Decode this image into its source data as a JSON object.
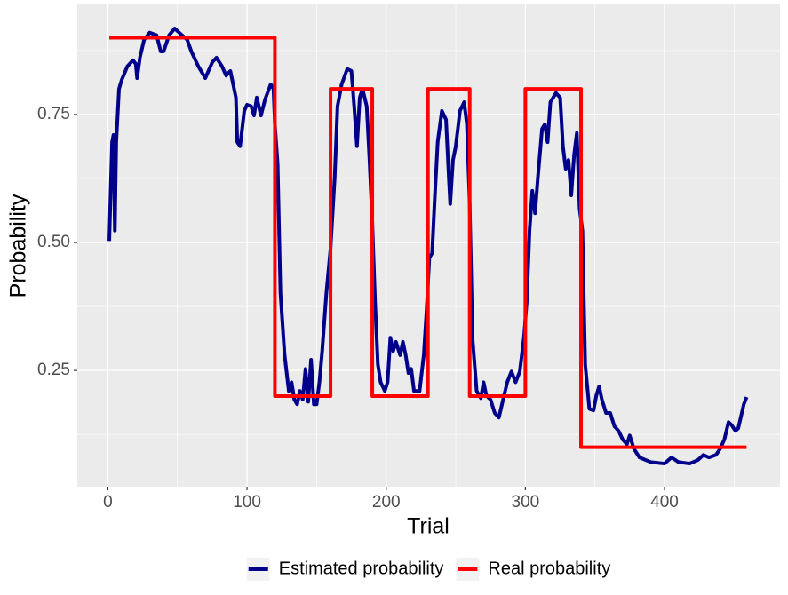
{
  "chart_data": {
    "type": "line",
    "x_label": "Trial",
    "y_label": "Probability",
    "xlim": [
      -22,
      483
    ],
    "ylim": [
      0.023,
      0.965
    ],
    "xticks": [
      0,
      100,
      200,
      300,
      400
    ],
    "yticks": [
      0.25,
      {
        "value": 0.5,
        "label": "0.50"
      },
      0.75
    ],
    "grid": true,
    "legend": "bottom",
    "series": [
      {
        "name": "Estimated probability",
        "color": "#00008b",
        "x": [
          1,
          2,
          3,
          4,
          5,
          6,
          8,
          10,
          14,
          18,
          20,
          21,
          23,
          26,
          30,
          35,
          38,
          40,
          44,
          48,
          52,
          57,
          60,
          65,
          70,
          75,
          78,
          82,
          85,
          88,
          92,
          93,
          95,
          98,
          100,
          103,
          105,
          107,
          110,
          113,
          117,
          119,
          120,
          122,
          124,
          127,
          130,
          132,
          134,
          136,
          138,
          140,
          142,
          144,
          146,
          148,
          150,
          152,
          154,
          157,
          160,
          163,
          165,
          168,
          172,
          175,
          177,
          179,
          181,
          183,
          186,
          188,
          190,
          192,
          194,
          196,
          199,
          201,
          203,
          205,
          207,
          210,
          212,
          214,
          216,
          218,
          220,
          224,
          227,
          229,
          231,
          233,
          235,
          237,
          240,
          243,
          245,
          246,
          248,
          250,
          253,
          256,
          258,
          260,
          262,
          265,
          268,
          270,
          272,
          275,
          278,
          281,
          284,
          287,
          290,
          293,
          296,
          299,
          301,
          303,
          305,
          307,
          309,
          312,
          314,
          316,
          318,
          320,
          322,
          325,
          327,
          329,
          331,
          333,
          335,
          337,
          339,
          341,
          343,
          346,
          349,
          351,
          353,
          355,
          358,
          361,
          364,
          367,
          370,
          373,
          375,
          378,
          382,
          390,
          400,
          405,
          410,
          418,
          424,
          428,
          432,
          437,
          440,
          443,
          446,
          448,
          451,
          453,
          457,
          459
        ],
        "values": [
          0.503,
          0.601,
          0.696,
          0.71,
          0.523,
          0.696,
          0.8,
          0.818,
          0.844,
          0.856,
          0.849,
          0.821,
          0.861,
          0.896,
          0.91,
          0.905,
          0.873,
          0.873,
          0.905,
          0.918,
          0.908,
          0.896,
          0.873,
          0.844,
          0.821,
          0.852,
          0.861,
          0.844,
          0.826,
          0.835,
          0.783,
          0.696,
          0.688,
          0.757,
          0.769,
          0.766,
          0.748,
          0.783,
          0.748,
          0.78,
          0.809,
          0.8,
          0.731,
          0.653,
          0.401,
          0.28,
          0.21,
          0.227,
          0.193,
          0.184,
          0.21,
          0.193,
          0.253,
          0.189,
          0.271,
          0.184,
          0.184,
          0.227,
          0.288,
          0.401,
          0.488,
          0.627,
          0.766,
          0.809,
          0.839,
          0.835,
          0.766,
          0.688,
          0.783,
          0.8,
          0.766,
          0.661,
          0.54,
          0.384,
          0.262,
          0.227,
          0.21,
          0.227,
          0.314,
          0.288,
          0.306,
          0.28,
          0.306,
          0.28,
          0.245,
          0.253,
          0.21,
          0.21,
          0.28,
          0.366,
          0.47,
          0.479,
          0.592,
          0.696,
          0.757,
          0.74,
          0.627,
          0.575,
          0.661,
          0.688,
          0.757,
          0.774,
          0.731,
          0.575,
          0.314,
          0.21,
          0.196,
          0.227,
          0.201,
          0.193,
          0.167,
          0.158,
          0.193,
          0.227,
          0.248,
          0.227,
          0.248,
          0.314,
          0.384,
          0.523,
          0.601,
          0.557,
          0.627,
          0.722,
          0.731,
          0.696,
          0.774,
          0.783,
          0.792,
          0.783,
          0.688,
          0.644,
          0.661,
          0.592,
          0.67,
          0.714,
          0.566,
          0.523,
          0.262,
          0.175,
          0.172,
          0.201,
          0.219,
          0.193,
          0.167,
          0.167,
          0.141,
          0.132,
          0.115,
          0.106,
          0.123,
          0.097,
          0.08,
          0.071,
          0.068,
          0.08,
          0.071,
          0.068,
          0.075,
          0.085,
          0.08,
          0.085,
          0.097,
          0.115,
          0.149,
          0.144,
          0.132,
          0.137,
          0.184,
          0.198
        ]
      },
      {
        "name": "Real probability",
        "color": "#ff0000",
        "x": [
          1,
          120,
          120,
          160,
          160,
          190,
          190,
          230,
          230,
          260,
          260,
          300,
          300,
          340,
          340,
          459
        ],
        "values": [
          0.9,
          0.9,
          0.2,
          0.2,
          0.8,
          0.8,
          0.2,
          0.2,
          0.8,
          0.8,
          0.2,
          0.2,
          0.8,
          0.8,
          0.1,
          0.1
        ]
      }
    ]
  }
}
